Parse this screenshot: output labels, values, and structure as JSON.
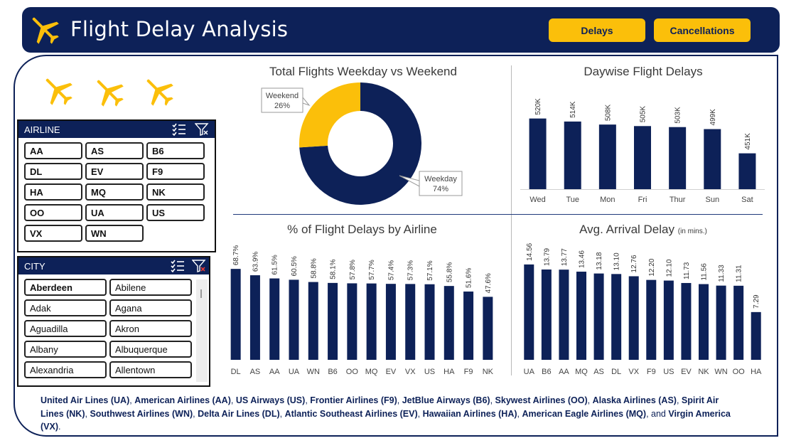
{
  "header": {
    "title": "Flight Delay Analysis",
    "buttons": {
      "delays": "Delays",
      "cancellations": "Cancellations"
    }
  },
  "colors": {
    "navy": "#0d2158",
    "gold": "#fbbf0a"
  },
  "icons": {
    "header": "airplane-icon",
    "decor": "airplane-icon",
    "multi_select": "multi-select-icon",
    "clear_filter": "clear-filter-icon"
  },
  "airline_slicer": {
    "title": "AIRLINE",
    "items": [
      "AA",
      "AS",
      "B6",
      "DL",
      "EV",
      "F9",
      "HA",
      "MQ",
      "NK",
      "OO",
      "UA",
      "US",
      "VX",
      "WN"
    ]
  },
  "city_slicer": {
    "title": "CITY",
    "items": [
      "Aberdeen",
      "Abilene",
      "Adak",
      "Agana",
      "Aguadilla",
      "Akron",
      "Albany",
      "Albuquerque",
      "Alexandria",
      "Allentown"
    ]
  },
  "chart_data": [
    {
      "type": "pie",
      "title": "Total Flights Weekday vs Weekend",
      "categories": [
        "Weekday",
        "Weekend"
      ],
      "values": [
        74,
        26
      ],
      "data_labels": [
        "74%",
        "26%"
      ],
      "colors": [
        "#0d2158",
        "#fbbf0a"
      ],
      "donut": true
    },
    {
      "type": "bar",
      "title": "Daywise Flight Delays",
      "categories": [
        "Wed",
        "Tue",
        "Mon",
        "Fri",
        "Thur",
        "Sun",
        "Sat"
      ],
      "values": [
        520,
        514,
        508,
        505,
        503,
        499,
        451
      ],
      "data_labels": [
        "520K",
        "514K",
        "508K",
        "505K",
        "503K",
        "499K",
        "451K"
      ],
      "ylim": [
        380,
        535
      ]
    },
    {
      "type": "bar",
      "title": "% of Flight Delays by Airline",
      "categories": [
        "DL",
        "AS",
        "AA",
        "UA",
        "WN",
        "B6",
        "OO",
        "MQ",
        "EV",
        "VX",
        "US",
        "HA",
        "F9",
        "NK"
      ],
      "values": [
        68.7,
        63.9,
        61.5,
        60.5,
        58.8,
        58.1,
        57.8,
        57.7,
        57.4,
        57.3,
        57.1,
        55.8,
        51.6,
        47.6
      ],
      "data_labels": [
        "68.7%",
        "63.9%",
        "61.5%",
        "60.5%",
        "58.8%",
        "58.1%",
        "57.8%",
        "57.7%",
        "57.4%",
        "57.3%",
        "57.1%",
        "55.8%",
        "51.6%",
        "47.6%"
      ],
      "ylim": [
        0,
        72
      ]
    },
    {
      "type": "bar",
      "title": "Avg. Arrival Delay",
      "title_suffix": "(in mins.)",
      "categories": [
        "UA",
        "B6",
        "AA",
        "MQ",
        "AS",
        "DL",
        "VX",
        "F9",
        "US",
        "EV",
        "NK",
        "WN",
        "OO",
        "HA"
      ],
      "values": [
        14.56,
        13.79,
        13.77,
        13.46,
        13.18,
        13.1,
        12.76,
        12.2,
        12.1,
        11.73,
        11.56,
        11.33,
        11.31,
        7.29
      ],
      "data_labels": [
        "14.56",
        "13.79",
        "13.77",
        "13.46",
        "13.18",
        "13.10",
        "12.76",
        "12.20",
        "12.10",
        "11.73",
        "11.56",
        "11.33",
        "11.31",
        "7.29"
      ],
      "ylim": [
        0,
        15.2
      ]
    }
  ],
  "footer": {
    "segments": [
      {
        "text": "United Air Lines (UA)",
        "bold": true
      },
      {
        "text": ", ",
        "bold": false
      },
      {
        "text": "American Airlines (AA)",
        "bold": true
      },
      {
        "text": ", ",
        "bold": false
      },
      {
        "text": "US Airways (US)",
        "bold": true
      },
      {
        "text": ", ",
        "bold": false
      },
      {
        "text": "Frontier Airlines (F9)",
        "bold": true
      },
      {
        "text": ", ",
        "bold": false
      },
      {
        "text": "JetBlue Airways (B6)",
        "bold": true
      },
      {
        "text": ", ",
        "bold": false
      },
      {
        "text": "Skywest Airlines (OO)",
        "bold": true
      },
      {
        "text": ", ",
        "bold": false
      },
      {
        "text": "Alaska Airlines (AS)",
        "bold": true
      },
      {
        "text": ", ",
        "bold": false
      },
      {
        "text": "Spirit Air Lines (NK)",
        "bold": true
      },
      {
        "text": ", ",
        "bold": false
      },
      {
        "text": "Southwest Airlines (WN)",
        "bold": true
      },
      {
        "text": ", ",
        "bold": false
      },
      {
        "text": "Delta Air Lines (DL)",
        "bold": true
      },
      {
        "text": ", ",
        "bold": false
      },
      {
        "text": "Atlantic Southeast Airlines (EV)",
        "bold": true
      },
      {
        "text": ", ",
        "bold": false
      },
      {
        "text": "Hawaiian Airlines (HA)",
        "bold": true
      },
      {
        "text": ", ",
        "bold": false
      },
      {
        "text": "American Eagle Airlines (MQ)",
        "bold": true
      },
      {
        "text": ", and ",
        "bold": false
      },
      {
        "text": "Virgin America (VX)",
        "bold": true
      },
      {
        "text": ".",
        "bold": false
      }
    ]
  }
}
